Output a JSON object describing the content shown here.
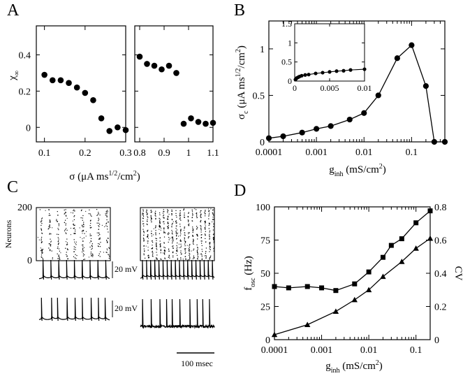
{
  "chart_data": [
    {
      "panel": "A",
      "type": "scatter",
      "ylabel": "χ",
      "ylabel_sub": "∞",
      "xlabel_parts": [
        "σ  (μA ms",
        "1/2",
        "/cm",
        "2",
        ")"
      ],
      "ylim": [
        -0.08,
        0.56
      ],
      "yticks": [
        0,
        0.2,
        0.4
      ],
      "ytick_labels": [
        "0",
        "0.2",
        "0.4"
      ],
      "subplots": [
        {
          "name": "left",
          "xlim": [
            0.08,
            0.3
          ],
          "xticks": [
            0.1,
            0.2,
            0.3
          ],
          "xtick_labels": [
            "0.1",
            "0.2",
            "0.3"
          ],
          "x": [
            0.1,
            0.12,
            0.14,
            0.16,
            0.18,
            0.2,
            0.22,
            0.24,
            0.26,
            0.28,
            0.3
          ],
          "y": [
            0.29,
            0.26,
            0.26,
            0.245,
            0.22,
            0.19,
            0.15,
            0.05,
            -0.02,
            0.0,
            -0.015
          ]
        },
        {
          "name": "right",
          "xlim": [
            0.78,
            1.1
          ],
          "xticks": [
            0.8,
            0.9,
            1.0,
            1.1
          ],
          "xtick_labels": [
            "0.8",
            "0.9",
            "1",
            "1.1"
          ],
          "x": [
            0.8,
            0.83,
            0.86,
            0.89,
            0.92,
            0.95,
            0.98,
            1.01,
            1.04,
            1.07,
            1.1
          ],
          "y": [
            0.39,
            0.35,
            0.34,
            0.32,
            0.34,
            0.3,
            0.02,
            0.05,
            0.03,
            0.02,
            0.025
          ]
        }
      ]
    },
    {
      "panel": "B",
      "type": "line",
      "xscale": "log",
      "xlim": [
        0.0001,
        0.5
      ],
      "ylim": [
        0,
        1.3
      ],
      "xticks": [
        0.0001,
        0.001,
        0.01,
        0.1
      ],
      "xtick_labels": [
        "0.0001",
        "0.001",
        "0.01",
        "0.1"
      ],
      "yticks": [
        0,
        0.5,
        1
      ],
      "ytick_labels": [
        "0",
        "0.5",
        "1"
      ],
      "xlabel": "g",
      "xlabel_sub": "inh",
      "xlabel_unit": "(mS/cm",
      "xlabel_unit_sup": "2",
      "xlabel_unit_end": ")",
      "ylabel_parts": [
        "σ",
        "c",
        " (μA ms",
        "1/2",
        "/cm",
        "2",
        ")"
      ],
      "x": [
        0.0001,
        0.0002,
        0.0005,
        0.001,
        0.002,
        0.005,
        0.01,
        0.02,
        0.05,
        0.1,
        0.2,
        0.3,
        0.5
      ],
      "y": [
        0.04,
        0.06,
        0.1,
        0.14,
        0.17,
        0.24,
        0.31,
        0.5,
        0.9,
        1.04,
        0.6,
        0.0,
        0.0
      ],
      "inset": {
        "type": "line",
        "xlim": [
          0,
          0.01
        ],
        "ylim": [
          0,
          1.5
        ],
        "xticks": [
          0,
          0.005,
          0.01
        ],
        "xtick_labels": [
          "0",
          "0.005",
          "0.01"
        ],
        "yticks": [
          0,
          0.5,
          1,
          1.5
        ],
        "ytick_labels": [
          "0",
          "0.5",
          "1",
          "1.5"
        ],
        "x": [
          0.0001,
          0.0002,
          0.0003,
          0.0005,
          0.0007,
          0.001,
          0.0015,
          0.002,
          0.003,
          0.004,
          0.005,
          0.006,
          0.007,
          0.008,
          0.01
        ],
        "y": [
          0.04,
          0.06,
          0.08,
          0.1,
          0.12,
          0.14,
          0.16,
          0.17,
          0.2,
          0.22,
          0.24,
          0.26,
          0.27,
          0.29,
          0.31
        ]
      }
    },
    {
      "panel": "C",
      "type": "raster",
      "ylabel": "Neurons",
      "yticks": [
        0,
        200
      ],
      "ytick_labels": [
        "0",
        "200"
      ],
      "n_neurons": 200,
      "duration_ms": 240,
      "left_raster_bands": 9,
      "right_raster_bands": 18,
      "left_trace_top_peaks": 9,
      "left_trace_bottom_peaks": 9,
      "right_trace_top_peaks": 18,
      "right_trace_bottom_peaks": 10,
      "scale_voltage": "20 mV",
      "scale_time": "100 msec"
    },
    {
      "panel": "D",
      "type": "line",
      "xscale": "log",
      "xlim": [
        0.0001,
        0.2
      ],
      "xticks": [
        0.0001,
        0.001,
        0.01,
        0.1
      ],
      "xtick_labels": [
        "0.0001",
        "0.001",
        "0.01",
        "0.1"
      ],
      "xlabel": "g",
      "xlabel_sub": "inh",
      "xlabel_unit": "(mS/cm",
      "xlabel_unit_sup": "2",
      "xlabel_unit_end": ")",
      "ylim_left": [
        0,
        100
      ],
      "yticks_left": [
        0,
        25,
        50,
        75,
        100
      ],
      "ytick_labels_left": [
        "0",
        "25",
        "50",
        "75",
        "100"
      ],
      "ylabel_left": "f",
      "ylabel_left_sub": "osc",
      "ylabel_left_unit": " (Hz)",
      "ylim_right": [
        0,
        0.8
      ],
      "yticks_right": [
        0,
        0.2,
        0.4,
        0.6,
        0.8
      ],
      "ytick_labels_right": [
        "0",
        "0.2",
        "0.4",
        "0.6",
        "0.8"
      ],
      "ylabel_right": "CV",
      "series": [
        {
          "name": "f_osc",
          "axis": "left",
          "marker": "square",
          "x": [
            0.0001,
            0.0002,
            0.0005,
            0.001,
            0.002,
            0.005,
            0.01,
            0.02,
            0.03,
            0.05,
            0.1,
            0.2
          ],
          "y": [
            40,
            39,
            40,
            39,
            37,
            42,
            51,
            62,
            71,
            76,
            88,
            97
          ]
        },
        {
          "name": "CV",
          "axis": "right",
          "marker": "triangle",
          "x": [
            0.0001,
            0.0005,
            0.002,
            0.005,
            0.01,
            0.02,
            0.05,
            0.1,
            0.2
          ],
          "y": [
            0.03,
            0.09,
            0.17,
            0.24,
            0.3,
            0.38,
            0.47,
            0.55,
            0.61
          ]
        }
      ]
    }
  ]
}
